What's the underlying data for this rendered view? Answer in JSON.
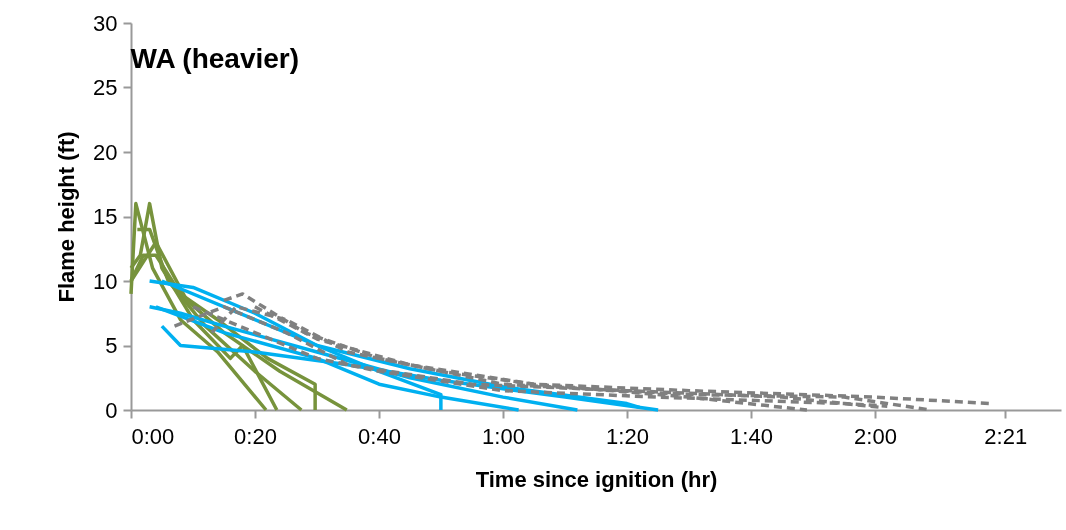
{
  "chart_data": {
    "type": "line",
    "title": "WA (heavier)",
    "xlabel": "Time since ignition (hr)",
    "ylabel": "Flame height (ft)",
    "xlim": [
      0,
      2.5
    ],
    "xticks": [
      {
        "value": 0,
        "label": "0:00"
      },
      {
        "value": 0.3333,
        "label": "0:20"
      },
      {
        "value": 0.6667,
        "label": "0:40"
      },
      {
        "value": 1,
        "label": "1:00"
      },
      {
        "value": 1.3333,
        "label": "1:20"
      },
      {
        "value": 1.6667,
        "label": "1:40"
      },
      {
        "value": 2,
        "label": "2:00"
      },
      {
        "value": 2.35,
        "label": "2:21"
      }
    ],
    "ylim": [
      0,
      30
    ],
    "yticks": [
      0,
      5,
      10,
      15,
      20,
      25,
      30
    ],
    "grid": false,
    "legend": false,
    "marker": "none",
    "series": [
      {
        "color": "#77933c",
        "line_style": "solid",
        "x": [
          0,
          0.013,
          0.058,
          0.133,
          0.233,
          0.363
        ],
        "values": [
          9,
          16,
          11,
          7,
          4.5,
          0
        ]
      },
      {
        "color": "#77933c",
        "line_style": "solid",
        "x": [
          0,
          0.025,
          0.05,
          0.083,
          0.167,
          0.267,
          0.3,
          0.392
        ],
        "values": [
          11,
          12,
          16,
          11,
          7,
          4,
          5,
          0
        ]
      },
      {
        "color": "#77933c",
        "line_style": "solid",
        "x": [
          0.017,
          0.05,
          0.1,
          0.2,
          0.333,
          0.458
        ],
        "values": [
          14,
          14,
          10,
          6.5,
          3,
          0
        ]
      },
      {
        "color": "#77933c",
        "line_style": "solid",
        "x": [
          0,
          0.033,
          0.067,
          0.133,
          0.233,
          0.367,
          0.495,
          0.495
        ],
        "values": [
          10,
          12,
          12,
          9,
          7,
          4,
          2,
          0
        ]
      },
      {
        "color": "#77933c",
        "line_style": "solid",
        "x": [
          0,
          0.067,
          0.15,
          0.25,
          0.4,
          0.58
        ],
        "values": [
          10,
          13,
          8.5,
          6,
          3,
          0
        ]
      },
      {
        "color": "#00b0f0",
        "line_style": "solid",
        "x": [
          0.05,
          0.167,
          0.333,
          0.5,
          0.667,
          0.833,
          0.833
        ],
        "values": [
          10,
          9.5,
          7.5,
          5,
          3,
          1.2,
          0
        ]
      },
      {
        "color": "#00b0f0",
        "line_style": "solid",
        "x": [
          0.05,
          0.133,
          0.25,
          0.5,
          0.75,
          1,
          1.2
        ],
        "values": [
          8,
          7.5,
          6.5,
          4.5,
          2.5,
          1,
          0
        ]
      },
      {
        "color": "#00b0f0",
        "line_style": "solid",
        "x": [
          0.083,
          0.133,
          0.333,
          0.583,
          0.833,
          1.167,
          1.417
        ],
        "values": [
          6.5,
          5,
          4.5,
          3.5,
          2.3,
          1,
          0
        ]
      },
      {
        "color": "#00b0f0",
        "line_style": "solid",
        "x": [
          0.067,
          0.25,
          0.5,
          0.667,
          0.833,
          1.042
        ],
        "values": [
          8,
          6,
          4,
          2,
          1,
          0
        ]
      },
      {
        "color": "#00b0f0",
        "line_style": "solid",
        "x": [
          0.083,
          0.333,
          0.5,
          0.75,
          1,
          1.333,
          1.367
        ],
        "values": [
          10,
          7,
          5,
          3.2,
          1.8,
          0.5,
          0.2
        ]
      },
      {
        "color": "#808080",
        "line_style": "dashed",
        "x": [
          0.217,
          0.283,
          0.417,
          0.583,
          0.833,
          1.083,
          1.5,
          2,
          2.308
        ],
        "values": [
          6,
          8,
          7,
          4.5,
          3,
          2,
          1.5,
          1,
          0.5
        ]
      },
      {
        "color": "#808080",
        "line_style": "dashed",
        "x": [
          0.25,
          0.3,
          0.467,
          0.667,
          1,
          1.5,
          1.917,
          2.15
        ],
        "values": [
          8.5,
          9,
          6,
          4,
          2,
          1.2,
          1,
          0
        ]
      },
      {
        "color": "#808080",
        "line_style": "dashed",
        "x": [
          0.117,
          0.25,
          0.417,
          0.583,
          0.917,
          1.333,
          1.75,
          2.017
        ],
        "values": [
          6.5,
          8,
          6,
          3.5,
          2,
          1.5,
          1,
          0.2
        ]
      },
      {
        "color": "#808080",
        "line_style": "dashed",
        "x": [
          0.333,
          0.5,
          0.75,
          1.083,
          1.5,
          1.817
        ],
        "values": [
          8,
          5.5,
          3.5,
          2,
          1,
          0
        ]
      },
      {
        "color": "#808080",
        "line_style": "dashed",
        "x": [
          0.167,
          0.333,
          0.5,
          0.667,
          1,
          1.417,
          1.917,
          2.033
        ],
        "values": [
          8,
          6,
          4,
          3,
          1.5,
          1,
          0.5,
          0.3
        ]
      }
    ]
  }
}
